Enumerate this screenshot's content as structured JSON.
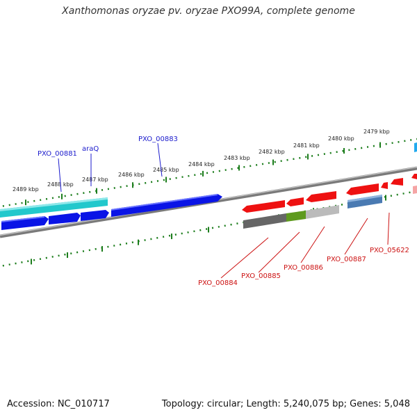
{
  "title": "Xanthomonas oryzae pv. oryzae PXO99A, complete genome",
  "footer": {
    "accession": "Accession: NC_010717",
    "summary": "Topology: circular; Length: 5,240,075 bp; Genes: 5,048"
  },
  "colors": {
    "forward_gene": "#0a14e6",
    "forward_feature": "#22c8cc",
    "reverse_gene": "#ee1111",
    "other_feature": "#666666",
    "green_feature": "#5e9a1e",
    "light_feature": "#bbbbbb",
    "steel_feature": "#4a7ab2",
    "ruler_tick": "#1c7d1c",
    "backbone": "#7a7a7a",
    "forward_label": "#1a1acc",
    "reverse_label": "#cc1111"
  },
  "ruler": {
    "unit": "kbp",
    "ticks": [
      {
        "value": "2489 kbp"
      },
      {
        "value": "2488 kbp"
      },
      {
        "value": "2487 kbp"
      },
      {
        "value": "2486 kbp"
      },
      {
        "value": "2485 kbp"
      },
      {
        "value": "2484 kbp"
      },
      {
        "value": "2483 kbp"
      },
      {
        "value": "2482 kbp"
      },
      {
        "value": "2481 kbp"
      },
      {
        "value": "2480 kbp"
      },
      {
        "value": "2479 kbp"
      }
    ]
  },
  "forward_labels": [
    "PXO_00881",
    "araQ",
    "PXO_00883"
  ],
  "reverse_labels": [
    "PXO_00884",
    "PXO_00885",
    "PXO_00886",
    "PXO_00887",
    "PXO_05622"
  ]
}
